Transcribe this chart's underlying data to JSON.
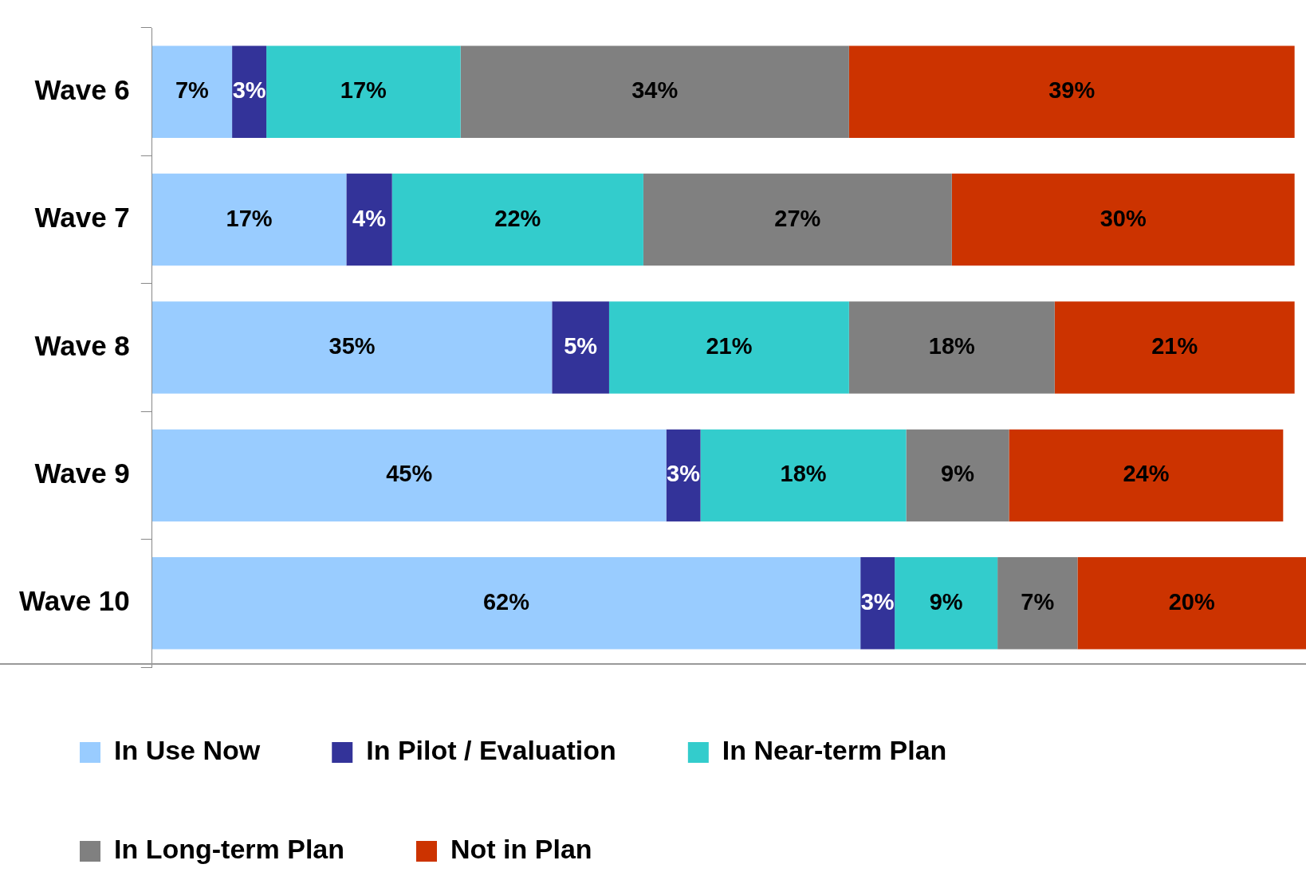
{
  "chart_data": {
    "type": "bar",
    "orientation": "horizontal",
    "stacked": true,
    "categories": [
      "Wave 6",
      "Wave 7",
      "Wave 8",
      "Wave 9",
      "Wave 10"
    ],
    "series": [
      {
        "name": "In Use Now",
        "color": "#99ccff",
        "values": [
          7,
          17,
          35,
          45,
          62
        ],
        "value_labels": [
          "7%",
          "17%",
          "35%",
          "45%",
          "62%"
        ]
      },
      {
        "name": "In Pilot / Evaluation",
        "color": "#333399",
        "values": [
          3,
          4,
          5,
          3,
          3
        ],
        "value_labels": [
          "3%",
          "4%",
          "5%",
          "3%",
          "3%"
        ]
      },
      {
        "name": "In Near-term Plan",
        "color": "#33cccc",
        "values": [
          17,
          22,
          21,
          18,
          9
        ],
        "value_labels": [
          "17%",
          "22%",
          "21%",
          "18%",
          "9%"
        ]
      },
      {
        "name": "In Long-term Plan",
        "color": "#808080",
        "values": [
          34,
          27,
          18,
          9,
          7
        ],
        "value_labels": [
          "34%",
          "27%",
          "18%",
          "9%",
          "7%"
        ]
      },
      {
        "name": "Not in Plan",
        "color": "#cc3300",
        "values": [
          39,
          30,
          21,
          24,
          20
        ],
        "value_labels": [
          "39%",
          "30%",
          "21%",
          "24%",
          "20%"
        ]
      }
    ],
    "xlim": [
      0,
      101
    ],
    "tick_labels": "y",
    "grid": false,
    "legend": "bottom"
  }
}
